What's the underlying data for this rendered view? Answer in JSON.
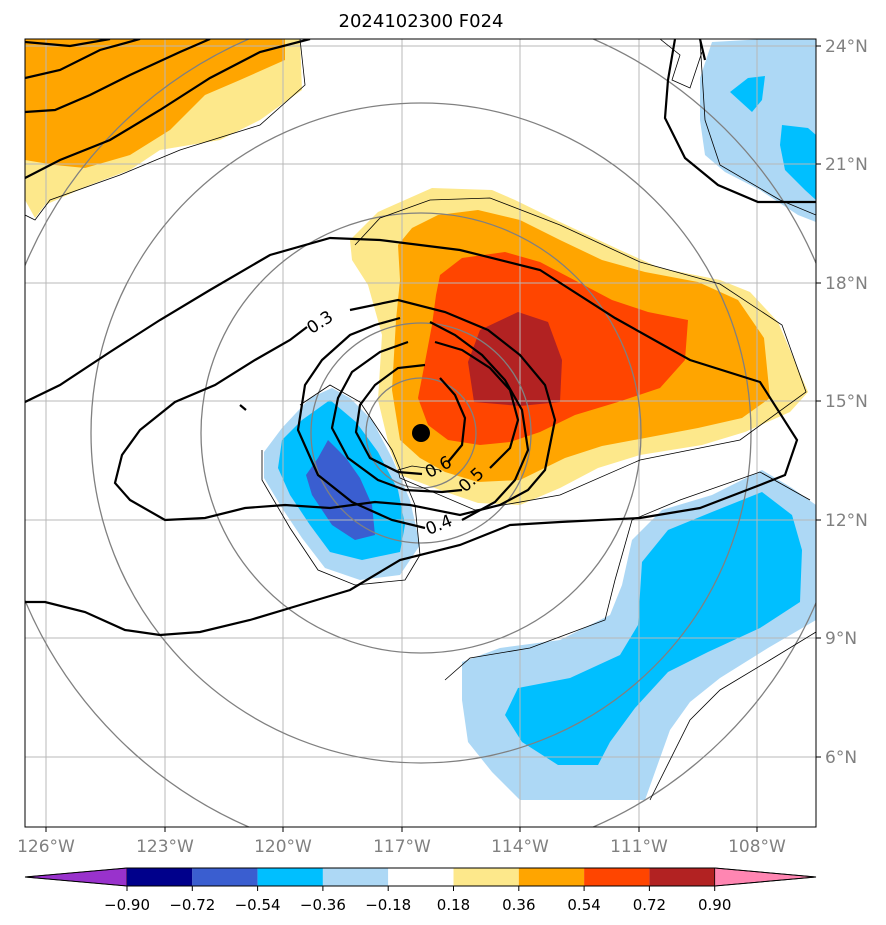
{
  "title": "2024102300 F024",
  "chart_data": {
    "type": "map",
    "lat_ticks": [
      "24°N",
      "21°N",
      "18°N",
      "15°N",
      "12°N",
      "9°N",
      "6°N"
    ],
    "lon_ticks": [
      "126°W",
      "123°W",
      "120°W",
      "117°W",
      "114°W",
      "111°W",
      "108°W"
    ],
    "colorbar": {
      "ticks": [
        "−0.90",
        "−0.72",
        "−0.54",
        "−0.36",
        "−0.18",
        "0.18",
        "0.36",
        "0.54",
        "0.72",
        "0.90"
      ],
      "levels": [
        -0.9,
        -0.72,
        -0.54,
        -0.36,
        -0.18,
        0.18,
        0.36,
        0.54,
        0.72,
        0.9
      ],
      "colors": [
        "#9932cc",
        "#00008b",
        "#3a5ed0",
        "#00bfff",
        "#add8f5",
        "#ffffff",
        "#fde88b",
        "#ffa500",
        "#ff4500",
        "#b22222",
        "#ff86b2"
      ]
    },
    "contour_labels": [
      "0.3",
      "0.4",
      "0.5",
      "0.6"
    ],
    "storm_center": {
      "lat": 14.2,
      "lon": -116.6
    }
  }
}
